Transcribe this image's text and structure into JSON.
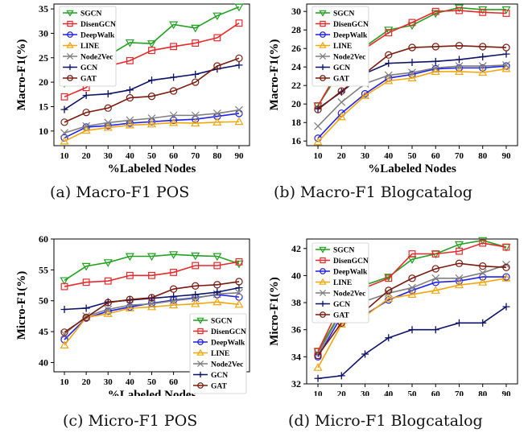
{
  "figure": {
    "captions": [
      "(a) Macro-F1 POS",
      "(b) Macro-F1 Blogcatalog",
      "(c) Micro-F1 POS",
      "(d) Micro-F1 Blogcatalog"
    ]
  },
  "series_styles": [
    {
      "name": "SGCN",
      "color": "#21a121",
      "marker": "triangle-down"
    },
    {
      "name": "DisenGCN",
      "color": "#e8282b",
      "marker": "square"
    },
    {
      "name": "DeepWalk",
      "color": "#2020e8",
      "marker": "circle"
    },
    {
      "name": "LINE",
      "color": "#f2a60c",
      "marker": "triangle-up"
    },
    {
      "name": "Node2Vec",
      "color": "#7f7f7f",
      "marker": "x"
    },
    {
      "name": "GCN",
      "color": "#0c1366",
      "marker": "plus"
    },
    {
      "name": "GAT",
      "color": "#7a1a0e",
      "marker": "circle"
    }
  ],
  "chart_data": [
    {
      "type": "line",
      "caption": "(a) Macro-F1 POS",
      "xlabel": "%Labeled Nodes",
      "ylabel": "Macro-F1(%)",
      "x": [
        10,
        20,
        30,
        40,
        50,
        60,
        70,
        80,
        90
      ],
      "xticks": [
        "10",
        "20",
        "30",
        "40",
        "50",
        "60",
        "70",
        "80",
        "90"
      ],
      "ylim": [
        7,
        36
      ],
      "yticks": [
        10,
        15,
        20,
        25,
        30,
        35
      ],
      "legend": "top-left",
      "grid": false,
      "series": [
        {
          "name": "SGCN",
          "values": [
            19.8,
            22.9,
            25.4,
            28.1,
            27.9,
            31.8,
            31.1,
            33.6,
            35.4
          ]
        },
        {
          "name": "DisenGCN",
          "values": [
            17.0,
            18.9,
            23.3,
            24.4,
            26.5,
            27.3,
            28.0,
            29.1,
            32.1
          ]
        },
        {
          "name": "DeepWalk",
          "values": [
            8.6,
            10.8,
            11.1,
            11.6,
            11.9,
            12.2,
            12.4,
            13.0,
            13.6
          ]
        },
        {
          "name": "LINE",
          "values": [
            7.9,
            10.1,
            10.7,
            11.2,
            11.4,
            11.7,
            11.6,
            11.8,
            11.9
          ]
        },
        {
          "name": "Node2Vec",
          "values": [
            9.6,
            11.0,
            11.7,
            12.2,
            12.6,
            13.2,
            13.2,
            13.6,
            14.3
          ]
        },
        {
          "name": "GCN",
          "values": [
            14.4,
            17.3,
            17.6,
            18.4,
            20.4,
            21.0,
            21.6,
            22.7,
            23.5
          ]
        },
        {
          "name": "GAT",
          "values": [
            11.8,
            13.8,
            14.7,
            16.8,
            17.1,
            18.2,
            20.0,
            23.3,
            24.9
          ]
        }
      ]
    },
    {
      "type": "line",
      "caption": "(b) Macro-F1 Blogcatalog",
      "xlabel": "%Labeled Nodes",
      "ylabel": "Macro-F1(%)",
      "x": [
        10,
        20,
        30,
        40,
        50,
        60,
        70,
        80,
        90
      ],
      "xticks": [
        "10",
        "20",
        "30",
        "40",
        "50",
        "60",
        "70",
        "80",
        "90"
      ],
      "ylim": [
        15.5,
        30.8
      ],
      "yticks": [
        16,
        18,
        20,
        22,
        24,
        26,
        28,
        30
      ],
      "legend": "top-left",
      "grid": false,
      "series": [
        {
          "name": "SGCN",
          "values": [
            19.8,
            23.8,
            26.2,
            28.0,
            28.5,
            29.8,
            30.4,
            30.2,
            30.2
          ]
        },
        {
          "name": "DisenGCN",
          "values": [
            19.8,
            24.2,
            26.0,
            27.7,
            28.8,
            30.0,
            30.1,
            29.9,
            29.8
          ]
        },
        {
          "name": "DeepWalk",
          "values": [
            16.3,
            19.0,
            21.1,
            22.8,
            23.2,
            23.8,
            23.9,
            23.9,
            24.1
          ]
        },
        {
          "name": "LINE",
          "values": [
            15.9,
            18.6,
            20.9,
            22.5,
            22.8,
            23.5,
            23.5,
            23.4,
            23.8
          ]
        },
        {
          "name": "Node2Vec",
          "values": [
            17.6,
            20.2,
            22.2,
            23.1,
            23.4,
            23.9,
            24.1,
            24.1,
            24.2
          ]
        },
        {
          "name": "GCN",
          "values": [
            19.5,
            21.3,
            23.3,
            24.4,
            24.5,
            24.6,
            24.8,
            25.1,
            25.4
          ]
        },
        {
          "name": "GAT",
          "values": [
            19.4,
            21.4,
            23.3,
            25.3,
            26.1,
            26.2,
            26.3,
            26.2,
            26.1
          ]
        }
      ]
    },
    {
      "type": "line",
      "caption": "(c) Micro-F1 POS",
      "xlabel": "%Labeled Nodes",
      "ylabel": "Micro-F1(%)",
      "x": [
        10,
        20,
        30,
        40,
        50,
        60,
        70,
        80,
        90
      ],
      "xticks": [
        "10",
        "20",
        "30",
        "40",
        "50",
        "60",
        "70",
        "80",
        "90"
      ],
      "ylim": [
        38.5,
        60
      ],
      "yticks": [
        40,
        45,
        50,
        55,
        60
      ],
      "legend": "bottom-right",
      "grid": false,
      "series": [
        {
          "name": "SGCN",
          "values": [
            53.3,
            55.6,
            56.2,
            57.2,
            57.2,
            57.5,
            57.3,
            57.2,
            56.0
          ]
        },
        {
          "name": "DisenGCN",
          "values": [
            52.3,
            53.0,
            53.2,
            54.1,
            54.1,
            54.6,
            55.7,
            55.7,
            56.3
          ]
        },
        {
          "name": "DeepWalk",
          "values": [
            43.7,
            47.2,
            48.3,
            49.0,
            49.6,
            50.1,
            50.5,
            51.0,
            50.6
          ]
        },
        {
          "name": "LINE",
          "values": [
            42.8,
            47.3,
            47.9,
            48.8,
            49.0,
            49.3,
            49.5,
            49.8,
            49.4
          ]
        },
        {
          "name": "Node2Vec",
          "values": [
            44.6,
            47.5,
            48.6,
            49.3,
            49.5,
            50.0,
            50.4,
            51.1,
            51.3
          ]
        },
        {
          "name": "GCN",
          "values": [
            48.6,
            48.8,
            49.8,
            50.1,
            50.4,
            50.7,
            51.0,
            51.4,
            52.1
          ]
        },
        {
          "name": "GAT",
          "values": [
            44.9,
            47.3,
            49.7,
            50.2,
            50.5,
            51.9,
            52.4,
            52.6,
            53.1
          ]
        }
      ]
    },
    {
      "type": "line",
      "caption": "(d) Micro-F1 Blogcatalog",
      "xlabel": "%Labeled Nodes",
      "ylabel": "Micro-F1(%)",
      "x": [
        10,
        20,
        30,
        40,
        50,
        60,
        70,
        80,
        90
      ],
      "xticks": [
        "10",
        "20",
        "30",
        "40",
        "50",
        "60",
        "70",
        "80",
        "90"
      ],
      "ylim": [
        32,
        42.7
      ],
      "yticks": [
        32,
        34,
        36,
        38,
        40,
        42
      ],
      "legend": "top-left",
      "grid": false,
      "series": [
        {
          "name": "SGCN",
          "values": [
            34.4,
            37.4,
            39.3,
            39.9,
            41.2,
            41.6,
            42.3,
            42.6,
            42.1
          ]
        },
        {
          "name": "DisenGCN",
          "values": [
            34.4,
            38.0,
            39.1,
            39.8,
            41.6,
            41.6,
            41.8,
            42.4,
            42.1
          ]
        },
        {
          "name": "DeepWalk",
          "values": [
            34.0,
            37.0,
            37.1,
            38.2,
            38.9,
            39.5,
            39.6,
            39.9,
            39.9
          ]
        },
        {
          "name": "LINE",
          "values": [
            33.2,
            36.4,
            37.0,
            38.3,
            38.6,
            38.9,
            39.3,
            39.5,
            39.8
          ]
        },
        {
          "name": "Node2Vec",
          "values": [
            34.2,
            37.3,
            38.1,
            38.7,
            39.1,
            39.8,
            39.8,
            40.2,
            40.8
          ]
        },
        {
          "name": "GCN",
          "values": [
            32.4,
            32.6,
            34.2,
            35.4,
            36.0,
            36.0,
            36.5,
            36.5,
            37.7
          ]
        },
        {
          "name": "GAT",
          "values": [
            34.1,
            36.5,
            37.4,
            38.9,
            39.8,
            40.5,
            40.9,
            40.7,
            40.6
          ]
        }
      ]
    }
  ]
}
